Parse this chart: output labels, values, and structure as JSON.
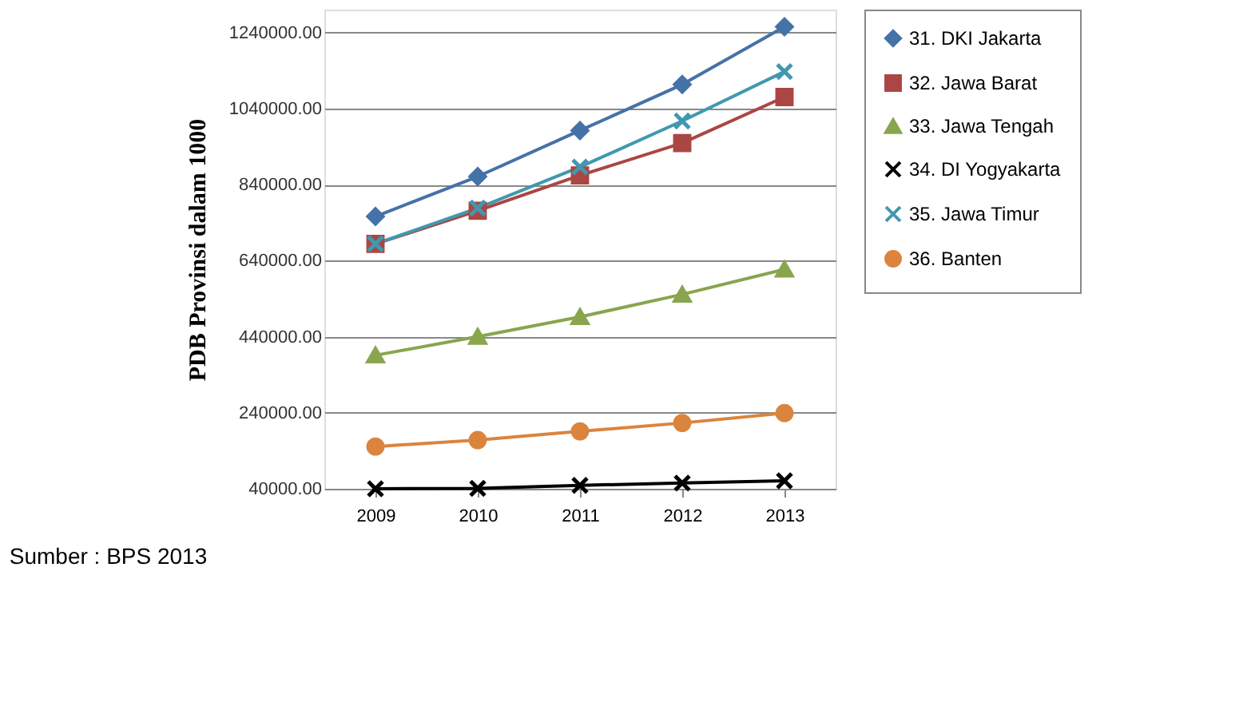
{
  "chart_data": {
    "type": "line",
    "ylabel": "PDB Provinsi dalam 1000",
    "categories": [
      "2009",
      "2010",
      "2011",
      "2012",
      "2013"
    ],
    "series": [
      {
        "name": "31. DKI Jakarta",
        "color": "#4572a7",
        "marker": "diamond",
        "values": [
          756000,
          861000,
          982000,
          1103000,
          1255000
        ]
      },
      {
        "name": "32. Jawa Barat",
        "color": "#aa4643",
        "marker": "square",
        "values": [
          684000,
          771000,
          864000,
          949000,
          1070000
        ]
      },
      {
        "name": "33. Jawa Tengah",
        "color": "#89a54e",
        "marker": "triangle",
        "values": [
          391000,
          440000,
          492000,
          551000,
          617000
        ]
      },
      {
        "name": "34. DI Yogyakarta",
        "color": "#000000",
        "marker": "cross",
        "values": [
          40000,
          41000,
          49000,
          55000,
          61000
        ]
      },
      {
        "name": "35. Jawa Timur",
        "color": "#4198af",
        "marker": "cross",
        "values": [
          684000,
          778000,
          886000,
          1007000,
          1137000
        ]
      },
      {
        "name": "36. Banten",
        "color": "#db843d",
        "marker": "circle",
        "values": [
          151000,
          168000,
          191000,
          213000,
          239000
        ]
      }
    ],
    "ylim": [
      40000,
      1300000
    ],
    "yticks": [
      {
        "value": 40000,
        "label": "40000.00"
      },
      {
        "value": 240000,
        "label": "240000.00"
      },
      {
        "value": 440000,
        "label": "440000.00"
      },
      {
        "value": 640000,
        "label": "640000.00"
      },
      {
        "value": 840000,
        "label": "840000.00"
      },
      {
        "value": 1040000,
        "label": "1040000.00"
      },
      {
        "value": 1240000,
        "label": "1240000.00"
      }
    ],
    "grid": "y",
    "legend": "right",
    "line_style": "solid",
    "annotations": [
      "Sumber : BPS 2013"
    ]
  }
}
